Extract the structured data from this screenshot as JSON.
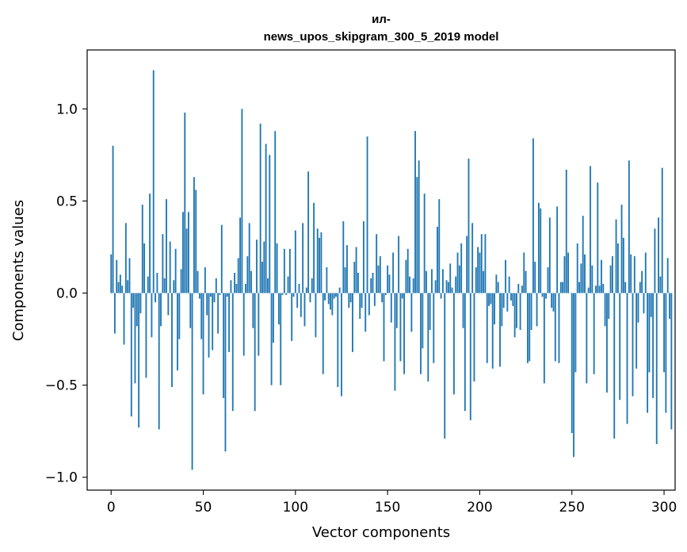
{
  "chart_data": {
    "type": "bar",
    "title_lines": [
      "ил-",
      "news_upos_skipgram_300_5_2019 model"
    ],
    "xlabel": "Vector components",
    "ylabel": "Components values",
    "xlim": [
      -13,
      306
    ],
    "ylim": [
      -1.07,
      1.32
    ],
    "xticks": [
      {
        "value": 0,
        "label": "0"
      },
      {
        "value": 50,
        "label": "50"
      },
      {
        "value": 100,
        "label": "100"
      },
      {
        "value": 150,
        "label": "150"
      },
      {
        "value": 200,
        "label": "200"
      },
      {
        "value": 250,
        "label": "250"
      },
      {
        "value": 300,
        "label": "300"
      }
    ],
    "yticks": [
      {
        "value": -1.0,
        "label": "−1.0"
      },
      {
        "value": -0.5,
        "label": "−0.5"
      },
      {
        "value": 0.0,
        "label": "0.0"
      },
      {
        "value": 0.5,
        "label": "0.5"
      },
      {
        "value": 1.0,
        "label": "1.0"
      }
    ],
    "bar_color": "#1f77b4",
    "series": [
      {
        "name": "components",
        "values": [
          0.21,
          0.8,
          -0.22,
          0.18,
          0.06,
          0.1,
          0.04,
          -0.28,
          0.38,
          0.07,
          0.19,
          -0.67,
          -0.08,
          -0.49,
          -0.18,
          -0.73,
          -0.11,
          0.48,
          0.27,
          -0.46,
          0.09,
          0.54,
          -0.24,
          1.21,
          -0.05,
          0.11,
          -0.74,
          -0.18,
          0.32,
          0.08,
          0.51,
          -0.12,
          0.28,
          -0.51,
          0.07,
          0.24,
          -0.42,
          -0.25,
          0.13,
          0.44,
          0.98,
          0.35,
          0.44,
          -0.19,
          -0.96,
          0.63,
          0.56,
          0.12,
          -0.03,
          -0.25,
          -0.55,
          0.14,
          -0.12,
          -0.35,
          -0.02,
          -0.31,
          -0.05,
          0.08,
          -0.22,
          -0.01,
          0.37,
          -0.57,
          -0.86,
          -0.02,
          -0.32,
          0.07,
          -0.64,
          0.11,
          0.05,
          0.19,
          0.41,
          1.0,
          -0.34,
          0.05,
          0.2,
          0.38,
          0.12,
          -0.19,
          -0.64,
          0.29,
          -0.34,
          0.92,
          0.17,
          0.28,
          0.81,
          0.08,
          0.75,
          -0.5,
          -0.27,
          0.88,
          0.27,
          -0.17,
          -0.5,
          -0.01,
          0.24,
          -0.01,
          0.09,
          0.24,
          -0.26,
          -0.02,
          0.34,
          -0.08,
          0.05,
          -0.13,
          0.38,
          -0.18,
          0.03,
          0.66,
          -0.05,
          0.08,
          0.49,
          -0.24,
          0.35,
          0.3,
          0.33,
          -0.44,
          -0.04,
          0.14,
          -0.06,
          -0.09,
          -0.12,
          -0.03,
          -0.02,
          -0.51,
          0.03,
          -0.56,
          0.39,
          0.14,
          0.26,
          -0.08,
          -0.05,
          -0.32,
          0.17,
          0.25,
          0.11,
          -0.14,
          -0.08,
          0.39,
          -0.21,
          0.85,
          -0.12,
          0.08,
          0.11,
          -0.07,
          0.32,
          0.15,
          0.2,
          -0.05,
          -0.37,
          -0.01,
          0.15,
          0.1,
          -0.16,
          0.22,
          -0.53,
          -0.19,
          0.31,
          -0.37,
          -0.03,
          -0.44,
          0.18,
          0.24,
          0.09,
          -0.21,
          0.08,
          0.88,
          0.63,
          0.72,
          -0.44,
          -0.3,
          0.54,
          0.12,
          -0.48,
          -0.2,
          0.13,
          -0.38,
          0.07,
          0.36,
          0.51,
          -0.03,
          0.13,
          -0.79,
          0.07,
          0.06,
          0.16,
          0.03,
          -0.55,
          0.09,
          0.22,
          0.15,
          0.27,
          -0.19,
          -0.64,
          0.31,
          0.73,
          -0.69,
          0.38,
          -0.48,
          0.14,
          0.25,
          0.22,
          0.32,
          0.12,
          0.32,
          -0.38,
          -0.07,
          -0.06,
          -0.41,
          -0.17,
          0.1,
          0.06,
          -0.4,
          -0.18,
          -0.08,
          0.18,
          -0.1,
          0.09,
          -0.04,
          -0.07,
          -0.24,
          -0.19,
          0.05,
          -0.2,
          0.04,
          0.22,
          0.12,
          -0.38,
          -0.37,
          -0.2,
          0.84,
          0.17,
          -0.18,
          0.49,
          0.46,
          -0.02,
          -0.49,
          -0.03,
          0.14,
          0.41,
          -0.08,
          -0.1,
          -0.37,
          0.47,
          -0.38,
          0.06,
          0.06,
          0.2,
          0.67,
          0.22,
          0.0,
          -0.76,
          -0.89,
          -0.43,
          0.27,
          0.06,
          0.16,
          0.42,
          0.21,
          -0.49,
          0.03,
          0.69,
          0.15,
          -0.44,
          0.04,
          0.6,
          0.04,
          0.18,
          0.05,
          -0.18,
          -0.54,
          -0.14,
          0.15,
          0.2,
          -0.79,
          0.4,
          0.27,
          -0.58,
          0.48,
          0.3,
          0.06,
          -0.71,
          0.72,
          0.21,
          -0.56,
          0.2,
          -0.41,
          -0.16,
          0.06,
          0.12,
          -0.11,
          0.22,
          -0.65,
          -0.43,
          -0.13,
          -0.57,
          0.35,
          -0.82,
          0.41,
          0.09,
          0.68,
          -0.43,
          -0.65,
          0.19,
          -0.14,
          -0.74
        ]
      }
    ],
    "grid": false
  }
}
